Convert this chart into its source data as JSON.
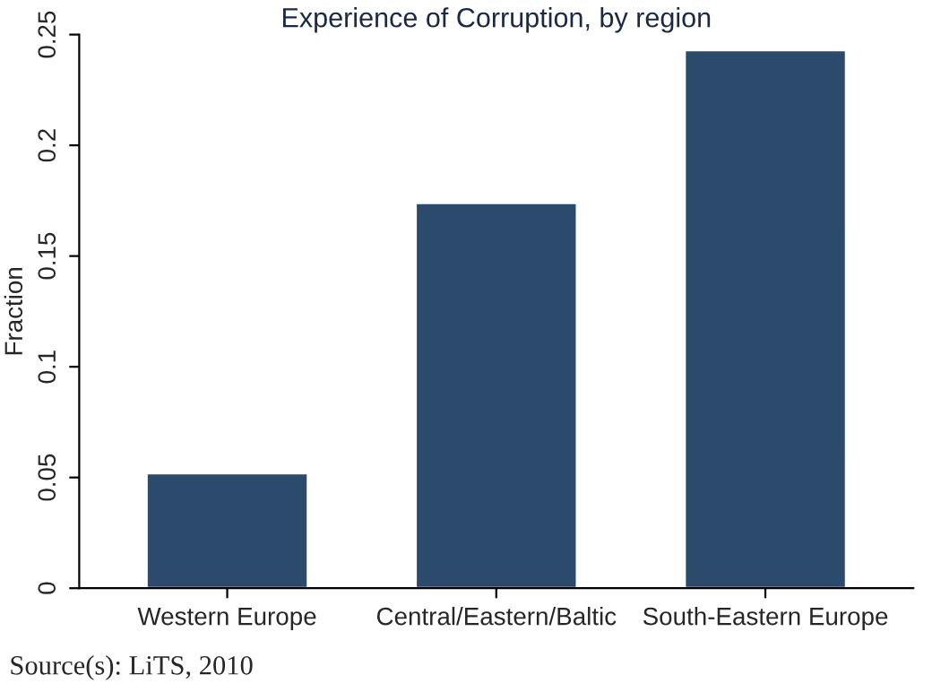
{
  "chart_data": {
    "type": "bar",
    "title": "Experience of Corruption, by region",
    "ylabel": "Fraction",
    "categories": [
      "Western Europe",
      "Central/Eastern/Baltic",
      "South-Eastern Europe"
    ],
    "values": [
      0.052,
      0.174,
      0.243
    ],
    "color": "#2c4a6c",
    "ylim": [
      0,
      0.25
    ],
    "yticks": [
      0,
      0.05,
      0.1,
      0.15,
      0.2,
      0.25
    ],
    "grid": false,
    "annotations": [
      "Source(s): LiTS, 2010"
    ]
  }
}
